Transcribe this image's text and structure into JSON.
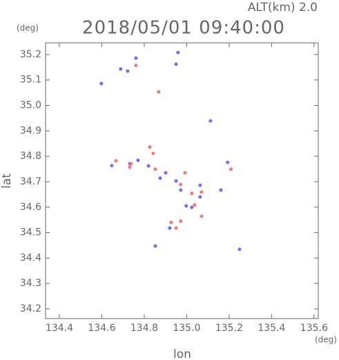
{
  "chart_data": {
    "type": "scatter",
    "title": "2018/05/01 09:40:00",
    "subtitle": "ALT(km) 2.0",
    "x_label": "lon",
    "y_label": "lat",
    "x_unit": "(deg)",
    "y_unit": "(deg)",
    "xlim": [
      134.335,
      135.62
    ],
    "ylim": [
      34.162,
      35.246
    ],
    "xticks": [
      134.4,
      134.6,
      134.8,
      {
        "value": 135,
        "label": "135.0"
      },
      135.2,
      135.4,
      135.6
    ],
    "yticks": [
      34.2,
      34.3,
      34.4,
      34.5,
      34.6,
      34.7,
      34.8,
      34.9,
      {
        "value": 35,
        "label": "35.0"
      },
      35.1,
      35.2
    ],
    "series": [
      {
        "color": "#6b6bff",
        "x": [
          134.598,
          134.689,
          134.722,
          134.761,
          134.959,
          134.95,
          135.112,
          134.732,
          134.82,
          134.875,
          134.95,
          134.972,
          134.998,
          135.063,
          135.161,
          135.193,
          134.92,
          134.852,
          135.249,
          134.647,
          134.771,
          135.063,
          135.024,
          134.901
        ],
        "y": [
          35.086,
          35.143,
          35.135,
          35.186,
          35.208,
          35.162,
          34.939,
          34.771,
          34.762,
          34.714,
          34.703,
          34.667,
          34.605,
          34.64,
          34.667,
          34.776,
          34.518,
          34.447,
          34.434,
          34.763,
          34.784,
          34.686,
          34.599,
          34.735
        ]
      },
      {
        "color": "#ff7373",
        "x": [
          134.761,
          134.868,
          134.667,
          134.732,
          134.826,
          134.842,
          134.738,
          134.852,
          134.972,
          134.992,
          135.024,
          135.07,
          135.037,
          134.95,
          134.972,
          135.07,
          134.927,
          135.209
        ],
        "y": [
          35.157,
          35.053,
          34.782,
          34.757,
          34.836,
          34.811,
          34.771,
          34.749,
          34.689,
          34.735,
          34.654,
          34.659,
          34.608,
          34.518,
          34.545,
          34.564,
          34.54,
          34.749
        ]
      }
    ]
  }
}
